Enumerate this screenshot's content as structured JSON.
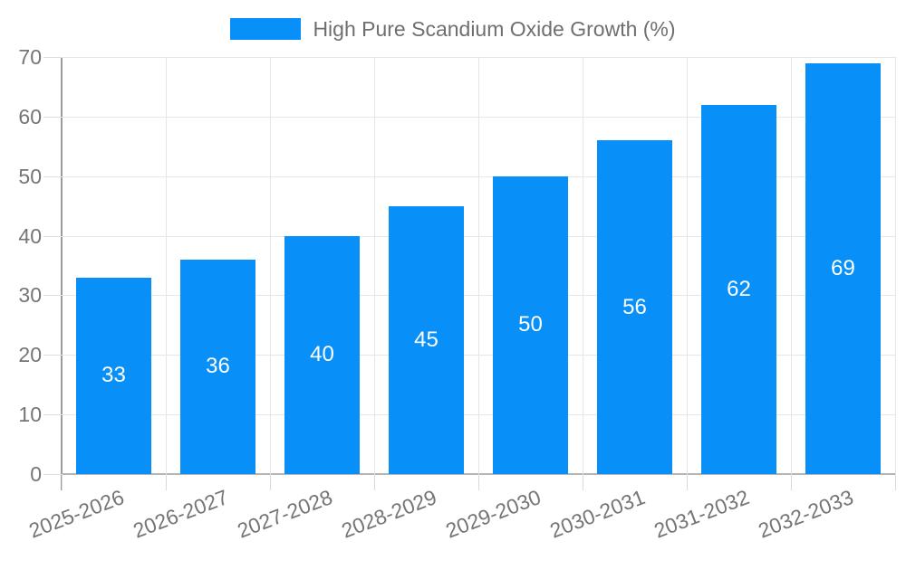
{
  "chart_data": {
    "type": "bar",
    "title": "High Pure Scandium Oxide Growth (%)",
    "categories": [
      "2025-2026",
      "2026-2027",
      "2027-2028",
      "2028-2029",
      "2029-2030",
      "2030-2031",
      "2031-2032",
      "2032-2033"
    ],
    "values": [
      33,
      36,
      40,
      45,
      50,
      56,
      62,
      69
    ],
    "xlabel": "",
    "ylabel": "",
    "ylim": [
      0,
      70
    ],
    "ytick_step": 10,
    "grid": true,
    "value_labels_shown": true,
    "legend_position": "top-center",
    "colors": {
      "bar": "#0890F8",
      "value_label": "#ffffff",
      "axis_text": "#757575",
      "legend_text": "#6f6f6f",
      "gridline": "#e6e6e6",
      "axis_line": "#9b9b9b",
      "baseline": "#b5b5b5"
    }
  }
}
